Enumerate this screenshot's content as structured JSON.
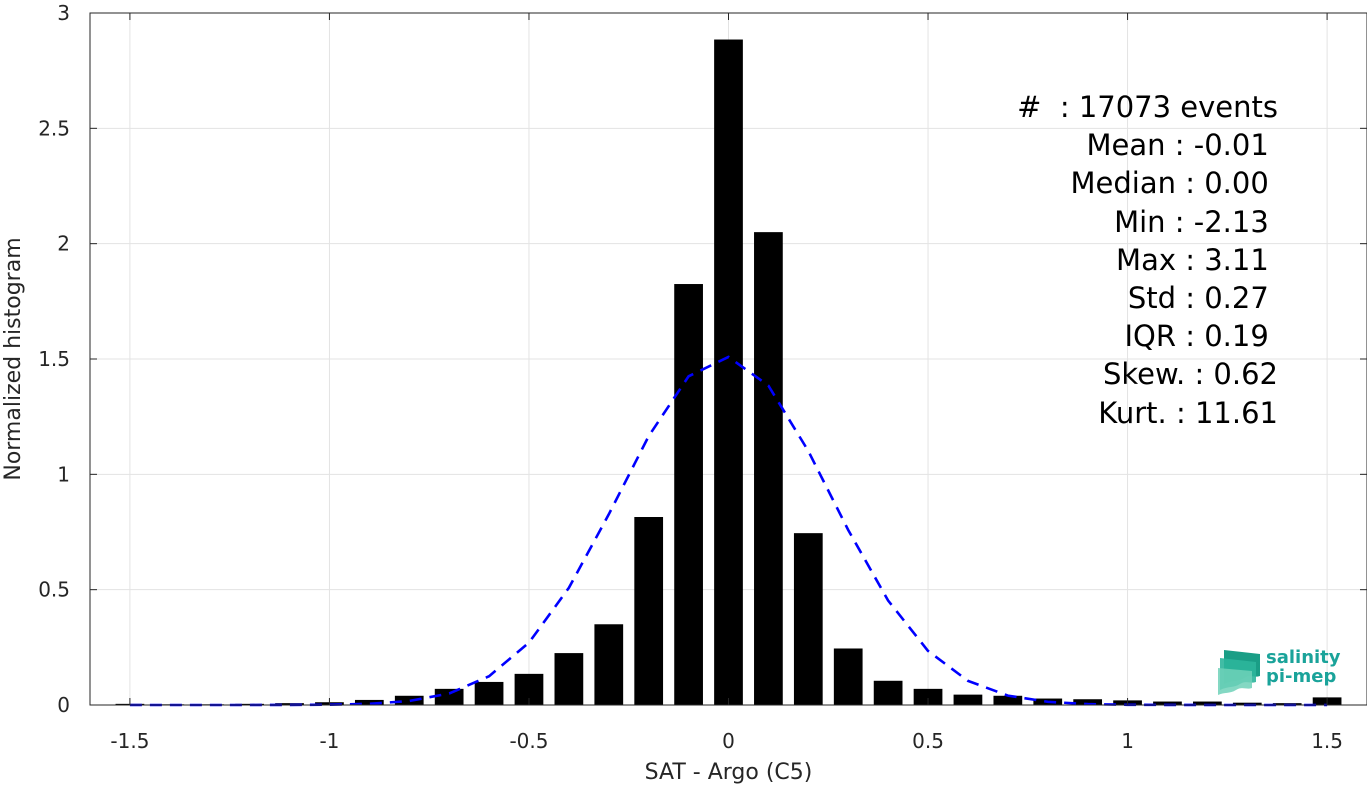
{
  "chart_data": {
    "type": "bar",
    "xlabel": "SAT - Argo (C5)",
    "ylabel": "Normalized histogram",
    "xlim": [
      -1.6,
      1.6
    ],
    "ylim": [
      0,
      3
    ],
    "xticks": [
      "-1.5",
      "-1",
      "-0.5",
      "0",
      "0.5",
      "1",
      "1.5"
    ],
    "yticks": [
      "0",
      "0.5",
      "1",
      "1.5",
      "2",
      "2.5",
      "3"
    ],
    "grid": true,
    "bar_color": "#000000",
    "curve_color": "#0000ff",
    "bin_width": 0.1,
    "bars": [
      {
        "x": -1.5,
        "y": 0.005
      },
      {
        "x": -1.4,
        "y": 0.003
      },
      {
        "x": -1.3,
        "y": 0.003
      },
      {
        "x": -1.2,
        "y": 0.005
      },
      {
        "x": -1.1,
        "y": 0.008
      },
      {
        "x": -1.0,
        "y": 0.012
      },
      {
        "x": -0.9,
        "y": 0.022
      },
      {
        "x": -0.8,
        "y": 0.04
      },
      {
        "x": -0.7,
        "y": 0.07
      },
      {
        "x": -0.6,
        "y": 0.1
      },
      {
        "x": -0.5,
        "y": 0.135
      },
      {
        "x": -0.4,
        "y": 0.225
      },
      {
        "x": -0.3,
        "y": 0.35
      },
      {
        "x": -0.2,
        "y": 0.815
      },
      {
        "x": -0.1,
        "y": 1.825
      },
      {
        "x": 0.0,
        "y": 2.885
      },
      {
        "x": 0.1,
        "y": 2.05
      },
      {
        "x": 0.2,
        "y": 0.745
      },
      {
        "x": 0.3,
        "y": 0.245
      },
      {
        "x": 0.4,
        "y": 0.105
      },
      {
        "x": 0.5,
        "y": 0.07
      },
      {
        "x": 0.6,
        "y": 0.045
      },
      {
        "x": 0.7,
        "y": 0.04
      },
      {
        "x": 0.8,
        "y": 0.028
      },
      {
        "x": 0.9,
        "y": 0.025
      },
      {
        "x": 1.0,
        "y": 0.02
      },
      {
        "x": 1.1,
        "y": 0.015
      },
      {
        "x": 1.2,
        "y": 0.015
      },
      {
        "x": 1.3,
        "y": 0.01
      },
      {
        "x": 1.4,
        "y": 0.008
      },
      {
        "x": 1.5,
        "y": 0.033
      }
    ],
    "gaussian_fit": {
      "style": "dashed",
      "mean": -0.01,
      "peak": 1.51
    }
  },
  "stats": [
    "#  : 17073 events",
    "Mean : -0.01 ",
    "Median : 0.00 ",
    "Min : -2.13 ",
    "Max : 3.11 ",
    "Std : 0.27 ",
    "IQR : 0.19 ",
    "Skew. : 0.62",
    "Kurt. : 11.61"
  ],
  "logo": {
    "line1": "salinity",
    "line2": "pi-mep"
  }
}
